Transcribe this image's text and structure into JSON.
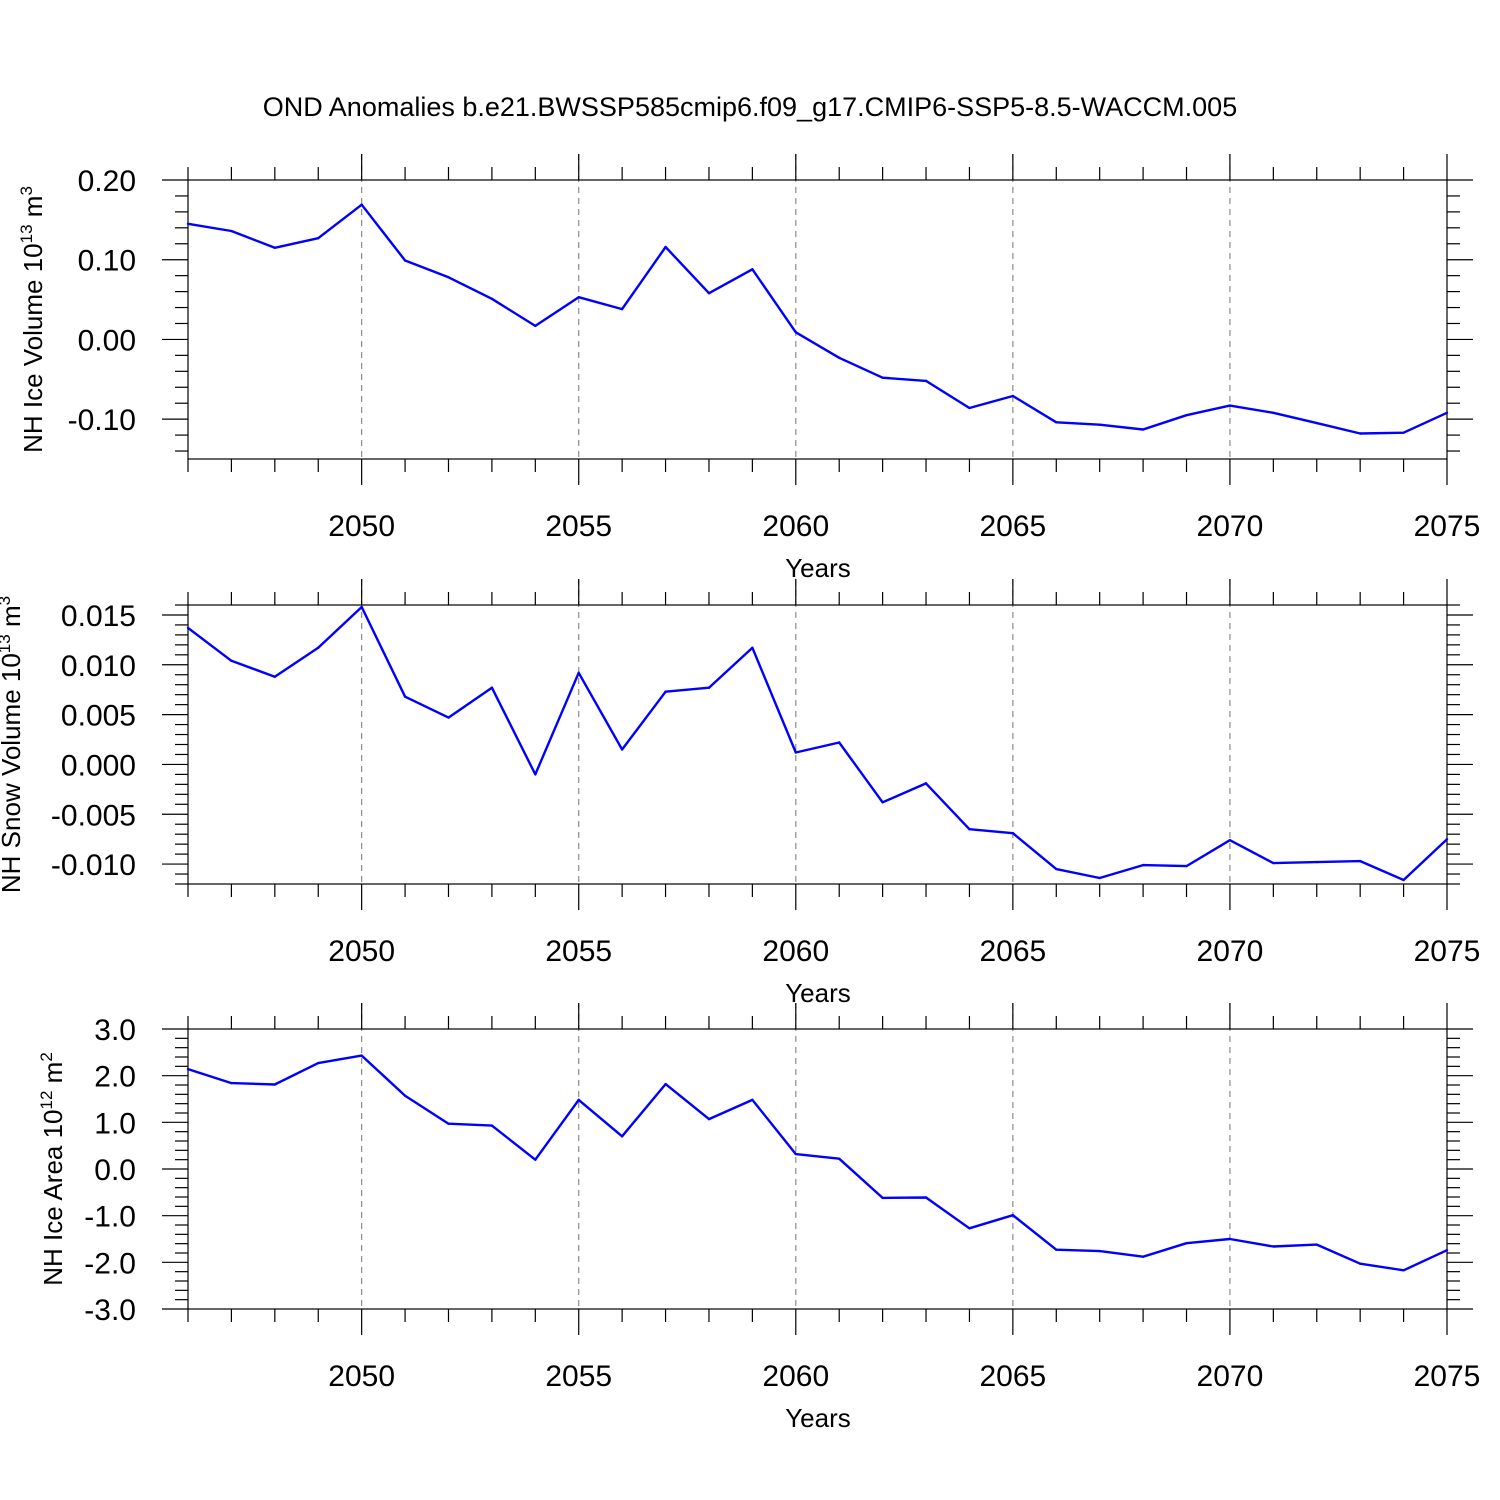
{
  "title": "OND Anomalies b.e21.BWSSP585cmip6.f09_g17.CMIP6-SSP5-8.5-WACCM.005",
  "colors": {
    "line": "#0000ff",
    "grid": "#8c8c8c",
    "axis": "#000000"
  },
  "chart_data": [
    {
      "type": "line",
      "ylabel": "NH Ice Volume 10",
      "ylabel_exp": "13",
      "ylabel_unit": " m",
      "ylabel_unit_exp": "3",
      "xlabel": "Years",
      "xlim": [
        2046,
        2075
      ],
      "ylim": [
        -0.15,
        0.2
      ],
      "yticks": [
        0.2,
        0.1,
        0.0,
        -0.1
      ],
      "ytick_labels": [
        "0.20",
        "0.10",
        "0.00",
        "-0.10"
      ],
      "xticks": [
        2050,
        2055,
        2060,
        2065,
        2070,
        2075
      ],
      "xtick_labels": [
        "2050",
        "2055",
        "2060",
        "2065",
        "2070",
        "2075"
      ],
      "grid_x": [
        2050,
        2055,
        2060,
        2065,
        2070
      ],
      "x": [
        2046,
        2047,
        2048,
        2049,
        2050,
        2051,
        2052,
        2053,
        2054,
        2055,
        2056,
        2057,
        2058,
        2059,
        2060,
        2061,
        2062,
        2063,
        2064,
        2065,
        2066,
        2067,
        2068,
        2069,
        2070,
        2071,
        2072,
        2073,
        2074,
        2075
      ],
      "y": [
        0.145,
        0.136,
        0.115,
        0.127,
        0.169,
        0.099,
        0.078,
        0.051,
        0.017,
        0.053,
        0.038,
        0.116,
        0.058,
        0.088,
        0.009,
        -0.023,
        -0.048,
        -0.052,
        -0.086,
        -0.071,
        -0.104,
        -0.107,
        -0.113,
        -0.095,
        -0.083,
        -0.092,
        -0.105,
        -0.118,
        -0.117,
        -0.092
      ]
    },
    {
      "type": "line",
      "ylabel": "NH Snow Volume 10",
      "ylabel_exp": "13",
      "ylabel_unit": " m",
      "ylabel_unit_exp": "3",
      "xlabel": "Years",
      "xlim": [
        2046,
        2075
      ],
      "ylim": [
        -0.012,
        0.016
      ],
      "yticks": [
        0.015,
        0.01,
        0.005,
        0.0,
        -0.005,
        -0.01
      ],
      "ytick_labels": [
        "0.015",
        "0.010",
        "0.005",
        "0.000",
        "-0.005",
        "-0.010"
      ],
      "xticks": [
        2050,
        2055,
        2060,
        2065,
        2070,
        2075
      ],
      "xtick_labels": [
        "2050",
        "2055",
        "2060",
        "2065",
        "2070",
        "2075"
      ],
      "grid_x": [
        2050,
        2055,
        2060,
        2065,
        2070
      ],
      "x": [
        2046,
        2047,
        2048,
        2049,
        2050,
        2051,
        2052,
        2053,
        2054,
        2055,
        2056,
        2057,
        2058,
        2059,
        2060,
        2061,
        2062,
        2063,
        2064,
        2065,
        2066,
        2067,
        2068,
        2069,
        2070,
        2071,
        2072,
        2073,
        2074,
        2075
      ],
      "y": [
        0.0137,
        0.0104,
        0.0088,
        0.0117,
        0.0158,
        0.0068,
        0.0047,
        0.0077,
        -0.001,
        0.0092,
        0.0015,
        0.0073,
        0.0077,
        0.0117,
        0.0012,
        0.0022,
        -0.0038,
        -0.0019,
        -0.0065,
        -0.0069,
        -0.0105,
        -0.0114,
        -0.0101,
        -0.0102,
        -0.0076,
        -0.0099,
        -0.0098,
        -0.0097,
        -0.0116,
        -0.0075
      ]
    },
    {
      "type": "line",
      "ylabel": "NH Ice Area 10",
      "ylabel_exp": "12",
      "ylabel_unit": " m",
      "ylabel_unit_exp": "2",
      "xlabel": "Years",
      "xlim": [
        2046,
        2075
      ],
      "ylim": [
        -3.0,
        3.0
      ],
      "yticks": [
        3.0,
        2.0,
        1.0,
        0.0,
        -1.0,
        -2.0,
        -3.0
      ],
      "ytick_labels": [
        "3.0",
        "2.0",
        "1.0",
        "0.0",
        "-1.0",
        "-2.0",
        "-3.0"
      ],
      "xticks": [
        2050,
        2055,
        2060,
        2065,
        2070,
        2075
      ],
      "xtick_labels": [
        "2050",
        "2055",
        "2060",
        "2065",
        "2070",
        "2075"
      ],
      "grid_x": [
        2050,
        2055,
        2060,
        2065,
        2070
      ],
      "x": [
        2046,
        2047,
        2048,
        2049,
        2050,
        2051,
        2052,
        2053,
        2054,
        2055,
        2056,
        2057,
        2058,
        2059,
        2060,
        2061,
        2062,
        2063,
        2064,
        2065,
        2066,
        2067,
        2068,
        2069,
        2070,
        2071,
        2072,
        2073,
        2074,
        2075
      ],
      "y": [
        2.14,
        1.84,
        1.81,
        2.27,
        2.43,
        1.57,
        0.97,
        0.93,
        0.2,
        1.48,
        0.7,
        1.82,
        1.07,
        1.48,
        0.32,
        0.22,
        -0.62,
        -0.61,
        -1.27,
        -0.99,
        -1.73,
        -1.76,
        -1.88,
        -1.59,
        -1.5,
        -1.66,
        -1.62,
        -2.03,
        -2.17,
        -1.74
      ]
    }
  ]
}
